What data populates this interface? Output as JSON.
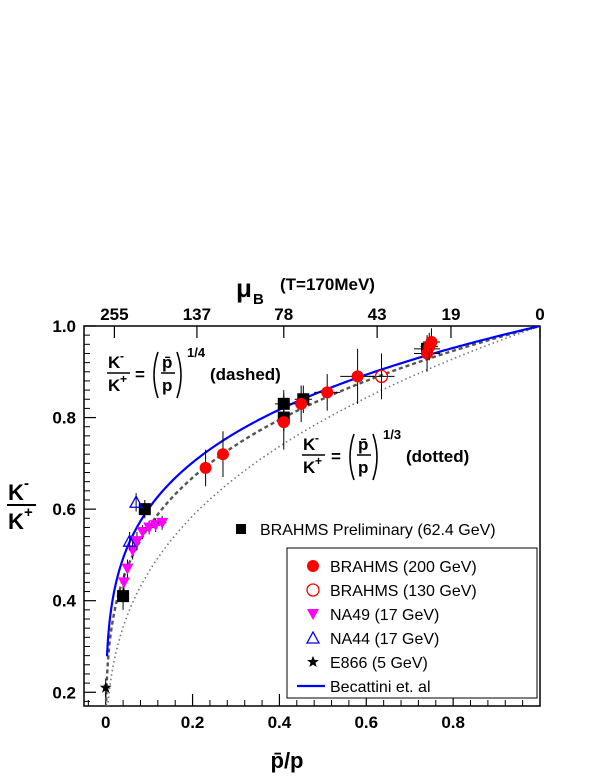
{
  "chart_data": {
    "type": "scatter",
    "xlabel": "p̄/p",
    "ylabel_numerator": "K",
    "ylabel_denominator": "K",
    "xlim": [
      -0.05,
      1.0
    ],
    "ylim": [
      0.17,
      1.0
    ],
    "x_ticks": [
      "0",
      "0.2",
      "0.4",
      "0.6",
      "0.8"
    ],
    "x_tick_values": [
      0,
      0.2,
      0.4,
      0.6,
      0.8
    ],
    "y_ticks": [
      "0.2",
      "0.4",
      "0.6",
      "0.8",
      "1.0"
    ],
    "y_tick_values": [
      0.2,
      0.4,
      0.6,
      0.8,
      1.0
    ],
    "top_axis": {
      "label": "μ",
      "label_subscript": "B",
      "label_note": "(T=170MeV)",
      "ticks": [
        "255",
        "137",
        "78",
        "43",
        "19",
        "0"
      ],
      "tick_positions_x": [
        0.02,
        0.21,
        0.41,
        0.625,
        0.795,
        1.0
      ]
    },
    "annotations": {
      "dashed": {
        "lhs_num": "K",
        "lhs_den": "K",
        "sup_minus": "-",
        "sup_plus": "+",
        "eq": "=",
        "frac_num": "p̄",
        "frac_den": "p",
        "power": "1/4",
        "label": "(dashed)"
      },
      "dotted": {
        "lhs_num": "K",
        "lhs_den": "K",
        "sup_minus": "-",
        "sup_plus": "+",
        "eq": "=",
        "frac_num": "p̄",
        "frac_den": "p",
        "power": "1/3",
        "label": "(dotted)"
      }
    },
    "legend_outside": {
      "label": "BRAHMS Preliminary (62.4 GeV)"
    },
    "series": [
      {
        "name": "BRAHMS Preliminary (62.4 GeV)",
        "marker": "square",
        "color": "#000000",
        "points": [
          [
            0.04,
            0.41,
            0.0,
            0.03
          ],
          [
            0.09,
            0.6,
            0.0,
            0.02
          ],
          [
            0.41,
            0.83,
            0.02,
            0.03
          ],
          [
            0.41,
            0.8,
            0.0,
            0.03
          ],
          [
            0.455,
            0.84,
            0.02,
            0.03
          ],
          [
            0.74,
            0.95,
            0.03,
            0.02
          ]
        ]
      },
      {
        "name": "BRAHMS (200 GeV)",
        "marker": "circle",
        "color": "#ff0000",
        "points": [
          [
            0.23,
            0.69,
            0.0,
            0.04
          ],
          [
            0.27,
            0.72,
            0.0,
            0.05
          ],
          [
            0.41,
            0.79,
            0.0,
            0.06
          ],
          [
            0.45,
            0.83,
            0.02,
            0.04
          ],
          [
            0.51,
            0.855,
            0.03,
            0.04
          ],
          [
            0.58,
            0.89,
            0.04,
            0.06
          ],
          [
            0.74,
            0.94,
            0.03,
            0.04
          ],
          [
            0.745,
            0.955,
            0.02,
            0.03
          ],
          [
            0.75,
            0.965,
            0.02,
            0.03
          ]
        ]
      },
      {
        "name": "BRAHMS (130 GeV)",
        "marker": "circle-open",
        "color": "#ff0000",
        "points": [
          [
            0.635,
            0.89,
            0.03,
            0.05
          ]
        ]
      },
      {
        "name": "NA49 (17 GeV)",
        "marker": "triangle-down",
        "color": "#ff00ff",
        "points": [
          [
            0.042,
            0.44,
            0.0,
            0.02
          ],
          [
            0.05,
            0.47,
            0.0,
            0.02
          ],
          [
            0.062,
            0.51,
            0.0,
            0.02
          ],
          [
            0.072,
            0.53,
            0.0,
            0.02
          ],
          [
            0.085,
            0.55,
            0.0,
            0.015
          ],
          [
            0.1,
            0.56,
            0.01,
            0.015
          ],
          [
            0.115,
            0.565,
            0.01,
            0.015
          ],
          [
            0.13,
            0.57,
            0.01,
            0.015
          ]
        ]
      },
      {
        "name": "NA44 (17 GeV)",
        "marker": "triangle-up-open",
        "color": "#0000ff",
        "points": [
          [
            0.055,
            0.53,
            0.0,
            0.02
          ],
          [
            0.07,
            0.615,
            0.0,
            0.02
          ]
        ]
      },
      {
        "name": "E866 (5 GeV)",
        "marker": "star",
        "color": "#000000",
        "points": [
          [
            0.0,
            0.21,
            0.0,
            0.02
          ]
        ]
      },
      {
        "name": "Becattini et. al",
        "marker": "line",
        "color": "#0000ff"
      }
    ]
  }
}
